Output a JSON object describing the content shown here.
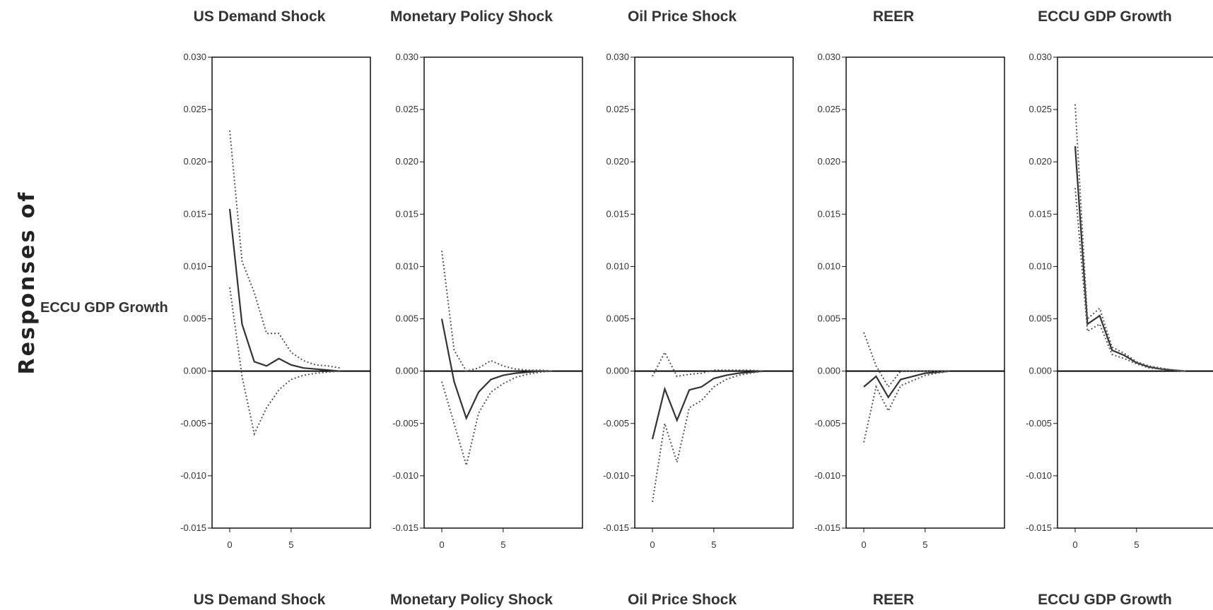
{
  "figure": {
    "left_label": "Responses of",
    "row_label": "ECCU GDP Growth",
    "bottom_titles": [
      "US Demand Shock",
      "Monetary Policy Shock",
      "Oil Price Shock",
      "REER",
      "ECCU GDP Growth"
    ]
  },
  "chart_data": [
    {
      "type": "line",
      "title": "US Demand Shock",
      "x": [
        0,
        1,
        2,
        3,
        4,
        5,
        6,
        7,
        8,
        9
      ],
      "ylim": [
        -0.015,
        0.03
      ],
      "yticks": [
        "0.030",
        "0.025",
        "0.020",
        "0.015",
        "0.010",
        "0.005",
        "0.000",
        "-0.005",
        "-0.010",
        "-0.015"
      ],
      "xticks": [
        "0",
        "5"
      ],
      "series": [
        {
          "style": "solid",
          "values": [
            0.0155,
            0.0045,
            0.0009,
            0.0005,
            0.0012,
            0.0006,
            0.0003,
            0.0002,
            0.0001,
            0.0
          ]
        },
        {
          "style": "dotted",
          "values": [
            0.023,
            0.0105,
            0.0075,
            0.0036,
            0.0036,
            0.0018,
            0.001,
            0.0006,
            0.0005,
            0.0003
          ]
        },
        {
          "style": "dotted",
          "values": [
            0.008,
            -0.0005,
            -0.006,
            -0.0035,
            -0.0018,
            -0.0008,
            -0.0004,
            -0.0002,
            -0.0001,
            0.0
          ]
        }
      ]
    },
    {
      "type": "line",
      "title": "Monetary Policy Shock",
      "x": [
        0,
        1,
        2,
        3,
        4,
        5,
        6,
        7,
        8,
        9
      ],
      "ylim": [
        -0.015,
        0.03
      ],
      "yticks": [
        "0.030",
        "0.025",
        "0.020",
        "0.015",
        "0.010",
        "0.005",
        "0.000",
        "-0.005",
        "-0.010",
        "-0.015"
      ],
      "xticks": [
        "0",
        "5"
      ],
      "series": [
        {
          "style": "solid",
          "values": [
            0.005,
            -0.001,
            -0.0045,
            -0.002,
            -0.0008,
            -0.0004,
            -0.0002,
            -0.0001,
            0.0,
            0.0
          ]
        },
        {
          "style": "dotted",
          "values": [
            0.0115,
            0.002,
            0.0,
            0.0003,
            0.001,
            0.0005,
            0.0002,
            0.0001,
            0.0001,
            0.0
          ]
        },
        {
          "style": "dotted",
          "values": [
            -0.001,
            -0.005,
            -0.009,
            -0.004,
            -0.002,
            -0.0012,
            -0.0006,
            -0.0003,
            -0.0001,
            0.0
          ]
        }
      ]
    },
    {
      "type": "line",
      "title": "Oil Price Shock",
      "x": [
        0,
        1,
        2,
        3,
        4,
        5,
        6,
        7,
        8,
        9
      ],
      "ylim": [
        -0.015,
        0.03
      ],
      "yticks": [
        "0.030",
        "0.025",
        "0.020",
        "0.015",
        "0.010",
        "0.005",
        "0.000",
        "-0.005",
        "-0.010",
        "-0.015"
      ],
      "xticks": [
        "0",
        "5"
      ],
      "series": [
        {
          "style": "solid",
          "values": [
            -0.0065,
            -0.0017,
            -0.0047,
            -0.0018,
            -0.0015,
            -0.0007,
            -0.0004,
            -0.0002,
            -0.0001,
            0.0
          ]
        },
        {
          "style": "dotted",
          "values": [
            -0.0005,
            0.0018,
            -0.0005,
            -0.0003,
            -0.0002,
            0.0001,
            0.0001,
            0.0001,
            0.0001,
            0.0
          ]
        },
        {
          "style": "dotted",
          "values": [
            -0.0125,
            -0.005,
            -0.0087,
            -0.0035,
            -0.0028,
            -0.0015,
            -0.0008,
            -0.0004,
            -0.0002,
            0.0
          ]
        }
      ]
    },
    {
      "type": "line",
      "title": "REER",
      "x": [
        0,
        1,
        2,
        3,
        4,
        5,
        6,
        7
      ],
      "ylim": [
        -0.015,
        0.03
      ],
      "yticks": [
        "0.030",
        "0.025",
        "0.020",
        "0.015",
        "0.010",
        "0.005",
        "0.000",
        "-0.005",
        "-0.010",
        "-0.015"
      ],
      "xticks": [
        "0",
        "5"
      ],
      "series": [
        {
          "style": "solid",
          "values": [
            -0.0015,
            -0.0005,
            -0.0025,
            -0.0008,
            -0.0005,
            -0.0002,
            -0.0001,
            0.0
          ]
        },
        {
          "style": "dotted",
          "values": [
            0.0037,
            0.0005,
            -0.0015,
            0.0,
            0.0,
            0.0,
            0.0,
            0.0
          ]
        },
        {
          "style": "dotted",
          "values": [
            -0.0068,
            -0.0015,
            -0.0038,
            -0.0014,
            -0.0009,
            -0.0004,
            -0.0002,
            0.0
          ]
        }
      ]
    },
    {
      "type": "line",
      "title": "ECCU GDP Growth",
      "x": [
        0,
        1,
        2,
        3,
        4,
        5,
        6,
        7,
        8,
        9
      ],
      "ylim": [
        -0.015,
        0.03
      ],
      "yticks": [
        "0.030",
        "0.025",
        "0.020",
        "0.015",
        "0.010",
        "0.005",
        "0.000",
        "-0.005",
        "-0.010",
        "-0.015"
      ],
      "xticks": [
        "0",
        "5"
      ],
      "series": [
        {
          "style": "solid",
          "values": [
            0.0215,
            0.0045,
            0.0053,
            0.002,
            0.0015,
            0.0008,
            0.0004,
            0.0002,
            0.0001,
            0.0
          ]
        },
        {
          "style": "dotted",
          "values": [
            0.0255,
            0.005,
            0.006,
            0.0023,
            0.0017,
            0.0009,
            0.0005,
            0.0003,
            0.0001,
            0.0
          ]
        },
        {
          "style": "dotted",
          "values": [
            0.0175,
            0.0038,
            0.0045,
            0.0016,
            0.0012,
            0.0007,
            0.0003,
            0.0002,
            0.0001,
            0.0
          ]
        }
      ]
    }
  ]
}
